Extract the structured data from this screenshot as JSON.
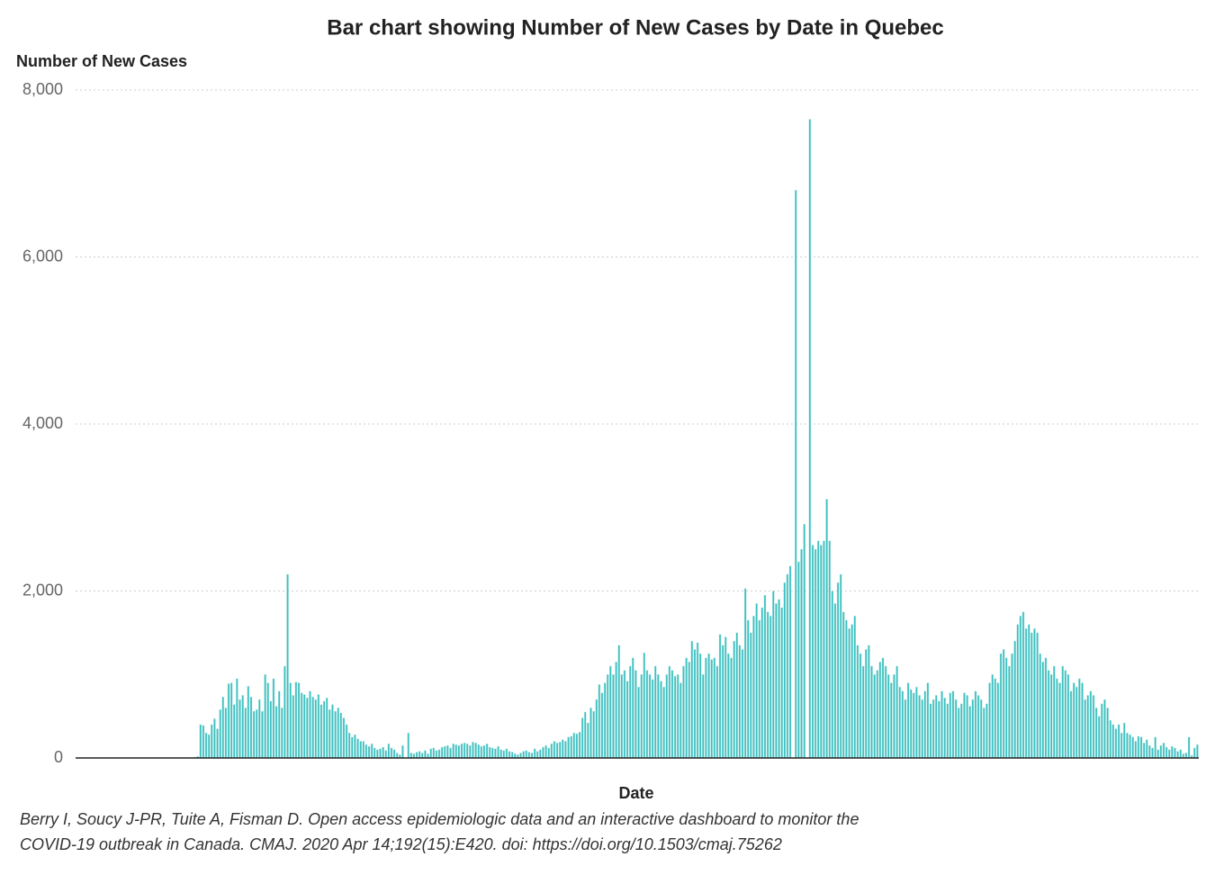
{
  "chart_data": {
    "type": "bar",
    "title": "Bar chart showing Number of New Cases by Date in Quebec",
    "y_label": "Number of New Cases",
    "x_label": "Date",
    "source": [
      "Berry I, Soucy J-PR, Tuite A, Fisman D. Open access epidemiologic data and an interactive dashboard to monitor the",
      "COVID-19 outbreak in Canada. CMAJ. 2020 Apr 14;192(15):E420. doi: https://doi.org/10.1503/cmaj.75262"
    ],
    "color": "#3dbfbf",
    "grid": true,
    "ylim": [
      0,
      8000
    ],
    "yticks": [
      0,
      {
        "value": 2000,
        "label": "2,000"
      },
      {
        "value": 4000,
        "label": "4,000"
      },
      {
        "value": 6000,
        "label": "6,000"
      },
      {
        "value": 8000,
        "label": "8,000"
      }
    ],
    "values": [
      0,
      0,
      0,
      0,
      0,
      0,
      0,
      0,
      0,
      0,
      0,
      0,
      0,
      0,
      0,
      0,
      0,
      0,
      0,
      0,
      0,
      0,
      0,
      0,
      0,
      0,
      0,
      0,
      0,
      0,
      0,
      0,
      0,
      0,
      0,
      0,
      0,
      0,
      0,
      0,
      0,
      5,
      10,
      20,
      400,
      390,
      300,
      280,
      400,
      470,
      350,
      580,
      730,
      600,
      890,
      900,
      640,
      950,
      700,
      750,
      600,
      860,
      730,
      560,
      580,
      700,
      560,
      1000,
      900,
      680,
      950,
      620,
      800,
      600,
      1100,
      2200,
      900,
      750,
      910,
      900,
      780,
      760,
      720,
      800,
      730,
      700,
      760,
      640,
      680,
      720,
      580,
      640,
      560,
      600,
      540,
      480,
      400,
      300,
      250,
      280,
      230,
      200,
      200,
      160,
      140,
      170,
      120,
      100,
      110,
      130,
      90,
      170,
      120,
      100,
      60,
      40,
      150,
      0,
      300,
      60,
      50,
      70,
      80,
      60,
      90,
      50,
      110,
      120,
      90,
      100,
      130,
      140,
      150,
      120,
      170,
      160,
      150,
      170,
      180,
      170,
      150,
      190,
      180,
      160,
      140,
      150,
      170,
      130,
      120,
      110,
      140,
      100,
      90,
      110,
      80,
      70,
      50,
      40,
      60,
      80,
      90,
      70,
      60,
      110,
      80,
      100,
      130,
      150,
      120,
      170,
      200,
      180,
      190,
      220,
      200,
      250,
      260,
      300,
      290,
      310,
      480,
      550,
      420,
      600,
      560,
      700,
      880,
      780,
      900,
      1000,
      1100,
      1000,
      1150,
      1350,
      1000,
      1050,
      920,
      1100,
      1200,
      1050,
      850,
      1000,
      1260,
      1050,
      1000,
      940,
      1100,
      1000,
      920,
      850,
      1000,
      1100,
      1050,
      980,
      1000,
      900,
      1100,
      1200,
      1150,
      1400,
      1300,
      1380,
      1250,
      1000,
      1200,
      1250,
      1180,
      1200,
      1100,
      1480,
      1350,
      1450,
      1250,
      1200,
      1400,
      1500,
      1350,
      1300,
      2030,
      1650,
      1500,
      1700,
      1850,
      1650,
      1800,
      1950,
      1750,
      1700,
      2000,
      1850,
      1900,
      1800,
      2100,
      2200,
      2300,
      0,
      6800,
      2350,
      2500,
      2800,
      0,
      7650,
      2550,
      2500,
      2600,
      2550,
      2600,
      3100,
      2600,
      2000,
      1850,
      2100,
      2200,
      1750,
      1650,
      1550,
      1600,
      1700,
      1350,
      1250,
      1100,
      1300,
      1350,
      1100,
      1000,
      1050,
      1150,
      1200,
      1100,
      1000,
      900,
      1000,
      1100,
      850,
      800,
      700,
      900,
      820,
      780,
      850,
      750,
      700,
      800,
      900,
      650,
      700,
      750,
      680,
      800,
      720,
      650,
      780,
      800,
      700,
      600,
      650,
      780,
      750,
      620,
      700,
      800,
      750,
      700,
      600,
      650,
      900,
      1000,
      950,
      900,
      1250,
      1300,
      1200,
      1100,
      1250,
      1400,
      1600,
      1700,
      1750,
      1550,
      1600,
      1500,
      1550,
      1500,
      1250,
      1150,
      1200,
      1050,
      1000,
      1100,
      950,
      900,
      1100,
      1050,
      1000,
      800,
      900,
      850,
      950,
      900,
      700,
      750,
      800,
      750,
      600,
      500,
      650,
      700,
      600,
      450,
      400,
      350,
      400,
      300,
      420,
      300,
      280,
      250,
      200,
      260,
      250,
      180,
      220,
      150,
      120,
      250,
      100,
      150,
      180,
      130,
      100,
      140,
      120,
      80,
      100,
      50,
      60,
      250,
      30,
      120,
      160
    ]
  }
}
